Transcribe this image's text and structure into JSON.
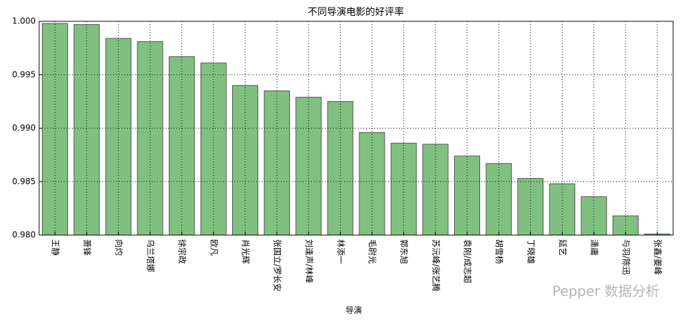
{
  "chart_data": {
    "type": "bar",
    "title": "不同导演电影的好评率",
    "x_label": "导演",
    "categories": [
      "王静",
      "萧锋",
      "向灼",
      "乌兰塔娜",
      "徐宗政",
      "欧凡",
      "肖光辉",
      "张国立/罗长安",
      "刘逢声/林峰",
      "林添一",
      "毛尉光",
      "郭东旭",
      "苏沅峰/张艺腾",
      "袁刚/成志超",
      "胡雪杨",
      "丁晓雄",
      "延艺",
      "潇庸",
      "与羽/陈迅",
      "张鑫/姜峰"
    ],
    "values": [
      0.9998,
      0.9997,
      0.9984,
      0.9981,
      0.9967,
      0.9961,
      0.994,
      0.9935,
      0.9929,
      0.9925,
      0.9896,
      0.9886,
      0.9885,
      0.9874,
      0.9867,
      0.9853,
      0.9848,
      0.9836,
      0.9818,
      0.9801
    ],
    "color": "#80c080",
    "ylim": [
      0.98,
      1.0
    ],
    "yticks": [
      {
        "value": 0.98,
        "label": "0.980"
      },
      0.985,
      {
        "value": 0.99,
        "label": "0.990"
      },
      0.995,
      {
        "value": 1.0,
        "label": "1.000"
      }
    ],
    "grid": true,
    "watermark": "Pepper 数据分析"
  }
}
